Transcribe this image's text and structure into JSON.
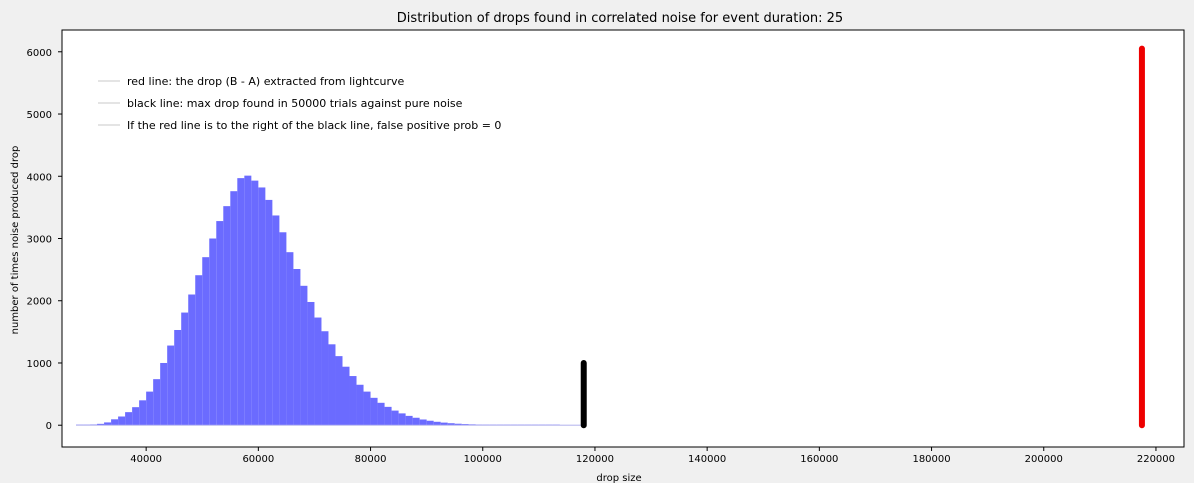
{
  "chart_data": {
    "type": "bar",
    "title": "Distribution of drops found in correlated noise for event duration: 25",
    "xlabel": "drop size",
    "ylabel": "number of times noise produced drop",
    "xlim": [
      25000,
      225000
    ],
    "ylim": [
      -350,
      6350
    ],
    "x_ticks": [
      40000,
      60000,
      80000,
      100000,
      120000,
      140000,
      160000,
      180000,
      200000,
      220000
    ],
    "y_ticks": [
      0,
      1000,
      2000,
      3000,
      4000,
      5000,
      6000
    ],
    "grid": false,
    "legend_position": "top-left",
    "histogram": {
      "name": "",
      "color": "#6b6bff",
      "bin_width": 1250,
      "bin_starts": [
        27500,
        28750,
        30000,
        31250,
        32500,
        33750,
        35000,
        36250,
        37500,
        38750,
        40000,
        41250,
        42500,
        43750,
        45000,
        46250,
        47500,
        48750,
        50000,
        51250,
        52500,
        53750,
        55000,
        56250,
        57500,
        58750,
        60000,
        61250,
        62500,
        63750,
        65000,
        66250,
        67500,
        68750,
        70000,
        71250,
        72500,
        73750,
        75000,
        76250,
        77500,
        78750,
        80000,
        81250,
        82500,
        83750,
        85000,
        86250,
        87500,
        88750,
        90000,
        91250,
        92500,
        93750,
        95000,
        96250,
        97500,
        98750,
        100000,
        101250,
        102500,
        103750,
        105000,
        106250,
        107500,
        108750,
        110000,
        111250,
        112500,
        113750,
        115000,
        116250
      ],
      "counts": [
        3,
        6,
        12,
        22,
        45,
        95,
        140,
        210,
        290,
        400,
        540,
        740,
        1000,
        1280,
        1530,
        1810,
        2100,
        2410,
        2700,
        3000,
        3280,
        3520,
        3760,
        3970,
        4010,
        3930,
        3820,
        3620,
        3370,
        3100,
        2780,
        2510,
        2240,
        1980,
        1730,
        1510,
        1300,
        1110,
        940,
        790,
        650,
        540,
        440,
        360,
        295,
        235,
        190,
        150,
        120,
        92,
        72,
        55,
        42,
        32,
        24,
        18,
        14,
        10,
        8,
        6,
        4,
        3,
        3,
        2,
        2,
        1,
        1,
        1,
        1,
        0,
        0,
        0
      ]
    },
    "lines": [
      {
        "name": "red line: the drop (B - A) extracted from lightcurve",
        "x": 217500,
        "y_range": [
          0,
          6050
        ],
        "color": "#ee0000"
      },
      {
        "name": "black line: max drop found in 50000 trials against pure noise",
        "x": 118000,
        "y_range": [
          0,
          1000
        ],
        "color": "#000000"
      }
    ],
    "legend": [
      "red line: the drop (B - A) extracted from lightcurve",
      "black line: max drop found in 50000 trials against pure noise",
      "If the red line is to the right of the black line, false positive prob = 0"
    ]
  }
}
